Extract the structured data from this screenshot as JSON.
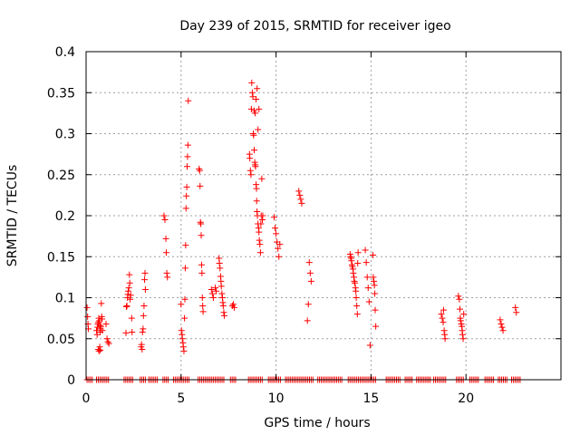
{
  "chart_data": {
    "type": "scatter",
    "title": "Day 239 of 2015, SRMTID for receiver igeo",
    "xlabel": "GPS time / hours",
    "ylabel": "SRMTID / TECUs",
    "xlim": [
      0,
      25
    ],
    "ylim": [
      0,
      0.4
    ],
    "xticks": [
      0,
      5,
      10,
      15,
      20
    ],
    "xtick_labels": [
      "0",
      "5",
      "10",
      "15",
      "20"
    ],
    "yticks": [
      0,
      0.05,
      0.1,
      0.15,
      0.2,
      0.25,
      0.3,
      0.35,
      0.4
    ],
    "ytick_labels": [
      "0",
      "0.05",
      "0.1",
      "0.15",
      "0.2",
      "0.25",
      "0.3",
      "0.35",
      "0.4"
    ],
    "grid": true,
    "series": [
      {
        "name": "SRMTID",
        "color": "#ff0000",
        "marker": "plus",
        "points": [
          [
            0.05,
            0.088
          ],
          [
            0.08,
            0.077
          ],
          [
            0.1,
            0.068
          ],
          [
            0.12,
            0.062
          ],
          [
            0.55,
            0.06
          ],
          [
            0.58,
            0.055
          ],
          [
            0.6,
            0.064
          ],
          [
            0.62,
            0.068
          ],
          [
            0.65,
            0.07
          ],
          [
            0.67,
            0.075
          ],
          [
            0.7,
            0.072
          ],
          [
            0.72,
            0.066
          ],
          [
            0.74,
            0.058
          ],
          [
            0.76,
            0.062
          ],
          [
            0.78,
            0.065
          ],
          [
            0.8,
            0.093
          ],
          [
            0.82,
            0.077
          ],
          [
            0.84,
            0.074
          ],
          [
            0.86,
            0.06
          ],
          [
            0.65,
            0.037
          ],
          [
            0.68,
            0.035
          ],
          [
            0.72,
            0.04
          ],
          [
            0.75,
            0.036
          ],
          [
            1.05,
            0.068
          ],
          [
            1.1,
            0.05
          ],
          [
            1.15,
            0.046
          ],
          [
            1.2,
            0.044
          ],
          [
            2.1,
            0.057
          ],
          [
            2.12,
            0.089
          ],
          [
            2.15,
            0.09
          ],
          [
            2.18,
            0.1
          ],
          [
            2.2,
            0.104
          ],
          [
            2.22,
            0.108
          ],
          [
            2.25,
            0.112
          ],
          [
            2.28,
            0.128
          ],
          [
            2.3,
            0.118
          ],
          [
            2.32,
            0.098
          ],
          [
            2.35,
            0.103
          ],
          [
            2.4,
            0.075
          ],
          [
            2.42,
            0.058
          ],
          [
            2.9,
            0.04
          ],
          [
            2.92,
            0.043
          ],
          [
            2.95,
            0.037
          ],
          [
            2.97,
            0.058
          ],
          [
            3.0,
            0.062
          ],
          [
            3.02,
            0.078
          ],
          [
            3.05,
            0.09
          ],
          [
            3.08,
            0.122
          ],
          [
            3.1,
            0.13
          ],
          [
            3.12,
            0.11
          ],
          [
            4.1,
            0.2
          ],
          [
            4.15,
            0.195
          ],
          [
            4.2,
            0.172
          ],
          [
            4.22,
            0.155
          ],
          [
            4.25,
            0.13
          ],
          [
            4.28,
            0.125
          ],
          [
            5.0,
            0.092
          ],
          [
            5.02,
            0.06
          ],
          [
            5.05,
            0.055
          ],
          [
            5.07,
            0.05
          ],
          [
            5.1,
            0.045
          ],
          [
            5.12,
            0.04
          ],
          [
            5.15,
            0.035
          ],
          [
            5.18,
            0.075
          ],
          [
            5.2,
            0.098
          ],
          [
            5.22,
            0.136
          ],
          [
            5.24,
            0.164
          ],
          [
            5.26,
            0.209
          ],
          [
            5.28,
            0.224
          ],
          [
            5.3,
            0.235
          ],
          [
            5.32,
            0.26
          ],
          [
            5.34,
            0.272
          ],
          [
            5.36,
            0.286
          ],
          [
            5.38,
            0.34
          ],
          [
            5.95,
            0.257
          ],
          [
            5.98,
            0.255
          ],
          [
            6.0,
            0.236
          ],
          [
            6.02,
            0.192
          ],
          [
            6.04,
            0.19
          ],
          [
            6.06,
            0.176
          ],
          [
            6.08,
            0.14
          ],
          [
            6.1,
            0.13
          ],
          [
            6.12,
            0.1
          ],
          [
            6.14,
            0.09
          ],
          [
            6.16,
            0.083
          ],
          [
            6.6,
            0.11
          ],
          [
            6.65,
            0.105
          ],
          [
            6.7,
            0.1
          ],
          [
            6.8,
            0.112
          ],
          [
            6.85,
            0.108
          ],
          [
            7.0,
            0.148
          ],
          [
            7.02,
            0.142
          ],
          [
            7.05,
            0.136
          ],
          [
            7.08,
            0.126
          ],
          [
            7.1,
            0.12
          ],
          [
            7.12,
            0.114
          ],
          [
            7.15,
            0.105
          ],
          [
            7.18,
            0.1
          ],
          [
            7.2,
            0.094
          ],
          [
            7.22,
            0.09
          ],
          [
            7.25,
            0.082
          ],
          [
            7.28,
            0.078
          ],
          [
            7.7,
            0.09
          ],
          [
            7.75,
            0.092
          ],
          [
            7.8,
            0.088
          ],
          [
            8.6,
            0.275
          ],
          [
            8.62,
            0.27
          ],
          [
            8.65,
            0.255
          ],
          [
            8.68,
            0.25
          ],
          [
            8.7,
            0.33
          ],
          [
            8.72,
            0.362
          ],
          [
            8.75,
            0.35
          ],
          [
            8.78,
            0.345
          ],
          [
            8.8,
            0.3
          ],
          [
            8.82,
            0.298
          ],
          [
            8.85,
            0.28
          ],
          [
            8.88,
            0.265
          ],
          [
            8.9,
            0.262
          ],
          [
            8.92,
            0.26
          ],
          [
            8.95,
            0.238
          ],
          [
            8.97,
            0.233
          ],
          [
            8.98,
            0.218
          ],
          [
            9.0,
            0.205
          ],
          [
            9.02,
            0.2
          ],
          [
            9.05,
            0.19
          ],
          [
            9.08,
            0.185
          ],
          [
            9.1,
            0.18
          ],
          [
            9.12,
            0.17
          ],
          [
            9.15,
            0.165
          ],
          [
            9.18,
            0.155
          ],
          [
            9.2,
            0.19
          ],
          [
            9.22,
            0.2
          ],
          [
            9.25,
            0.245
          ],
          [
            9.28,
            0.195
          ],
          [
            9.3,
            0.2
          ],
          [
            8.85,
            0.328
          ],
          [
            8.9,
            0.325
          ],
          [
            8.95,
            0.342
          ],
          [
            9.0,
            0.355
          ],
          [
            9.05,
            0.305
          ],
          [
            9.1,
            0.33
          ],
          [
            9.9,
            0.198
          ],
          [
            9.95,
            0.185
          ],
          [
            10.0,
            0.178
          ],
          [
            10.05,
            0.168
          ],
          [
            10.1,
            0.16
          ],
          [
            10.15,
            0.15
          ],
          [
            10.2,
            0.165
          ],
          [
            11.2,
            0.23
          ],
          [
            11.25,
            0.225
          ],
          [
            11.3,
            0.22
          ],
          [
            11.35,
            0.215
          ],
          [
            11.65,
            0.072
          ],
          [
            11.7,
            0.092
          ],
          [
            11.75,
            0.143
          ],
          [
            11.8,
            0.13
          ],
          [
            11.85,
            0.12
          ],
          [
            13.9,
            0.153
          ],
          [
            13.92,
            0.15
          ],
          [
            13.95,
            0.148
          ],
          [
            13.97,
            0.145
          ],
          [
            14.0,
            0.14
          ],
          [
            14.02,
            0.138
          ],
          [
            14.05,
            0.135
          ],
          [
            14.07,
            0.13
          ],
          [
            14.1,
            0.125
          ],
          [
            14.12,
            0.12
          ],
          [
            14.15,
            0.118
          ],
          [
            14.18,
            0.112
          ],
          [
            14.2,
            0.108
          ],
          [
            14.22,
            0.1
          ],
          [
            14.25,
            0.09
          ],
          [
            14.28,
            0.08
          ],
          [
            14.3,
            0.142
          ],
          [
            14.32,
            0.155
          ],
          [
            14.7,
            0.158
          ],
          [
            14.75,
            0.143
          ],
          [
            14.8,
            0.125
          ],
          [
            14.85,
            0.112
          ],
          [
            14.9,
            0.095
          ],
          [
            14.95,
            0.042
          ],
          [
            15.1,
            0.152
          ],
          [
            15.12,
            0.125
          ],
          [
            15.15,
            0.12
          ],
          [
            15.18,
            0.115
          ],
          [
            15.2,
            0.105
          ],
          [
            15.22,
            0.085
          ],
          [
            15.25,
            0.065
          ],
          [
            18.7,
            0.08
          ],
          [
            18.75,
            0.075
          ],
          [
            18.8,
            0.07
          ],
          [
            18.82,
            0.085
          ],
          [
            18.85,
            0.06
          ],
          [
            18.88,
            0.055
          ],
          [
            18.9,
            0.05
          ],
          [
            19.6,
            0.102
          ],
          [
            19.65,
            0.098
          ],
          [
            19.68,
            0.086
          ],
          [
            19.7,
            0.075
          ],
          [
            19.72,
            0.072
          ],
          [
            19.75,
            0.068
          ],
          [
            19.78,
            0.065
          ],
          [
            19.8,
            0.06
          ],
          [
            19.82,
            0.055
          ],
          [
            19.85,
            0.05
          ],
          [
            19.88,
            0.08
          ],
          [
            21.8,
            0.073
          ],
          [
            21.85,
            0.068
          ],
          [
            21.9,
            0.064
          ],
          [
            21.95,
            0.06
          ],
          [
            22.6,
            0.088
          ],
          [
            22.65,
            0.082
          ]
        ],
        "zero_segments": [
          [
            0.05,
            0.35
          ],
          [
            0.55,
            1.25
          ],
          [
            2.0,
            2.45
          ],
          [
            2.85,
            3.15
          ],
          [
            3.3,
            3.8
          ],
          [
            4.05,
            4.35
          ],
          [
            4.6,
            5.45
          ],
          [
            5.9,
            7.3
          ],
          [
            7.6,
            7.9
          ],
          [
            8.55,
            9.35
          ],
          [
            9.6,
            10.3
          ],
          [
            10.5,
            12.0
          ],
          [
            12.2,
            13.5
          ],
          [
            13.8,
            15.3
          ],
          [
            15.8,
            16.6
          ],
          [
            16.8,
            17.2
          ],
          [
            17.4,
            18.2
          ],
          [
            18.3,
            19.0
          ],
          [
            19.5,
            19.9
          ],
          [
            20.2,
            20.7
          ],
          [
            21.0,
            21.5
          ],
          [
            21.7,
            22.2
          ],
          [
            22.4,
            22.9
          ]
        ]
      }
    ]
  }
}
